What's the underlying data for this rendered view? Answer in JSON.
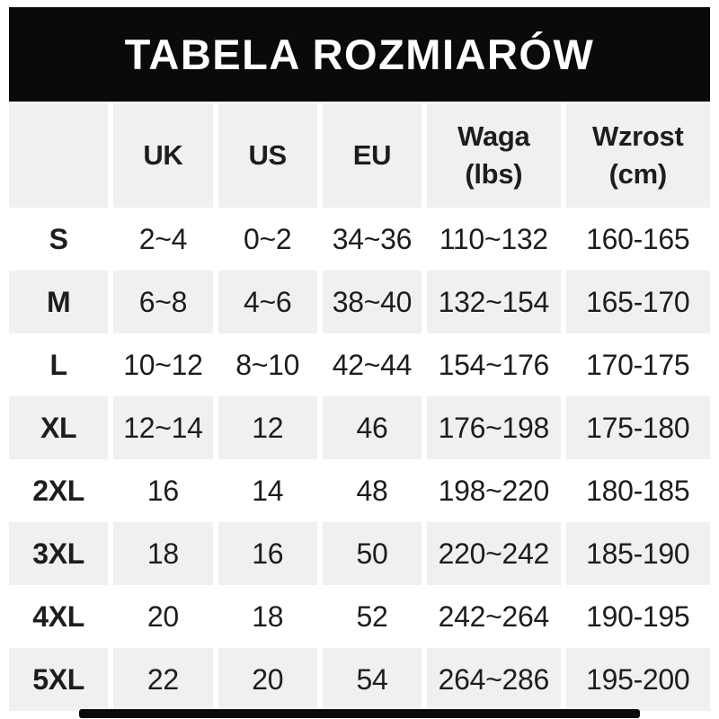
{
  "title": "TABELA ROZMIARÓW",
  "chart_data": {
    "type": "table",
    "title": "TABELA ROZMIARÓW",
    "columns": [
      "",
      "UK",
      "US",
      "EU",
      "Waga\n(lbs)",
      "Wzrost\n(cm)"
    ],
    "rows": [
      [
        "S",
        "2~4",
        "0~2",
        "34~36",
        "110~132",
        "160-165"
      ],
      [
        "M",
        "6~8",
        "4~6",
        "38~40",
        "132~154",
        "165-170"
      ],
      [
        "L",
        "10~12",
        "8~10",
        "42~44",
        "154~176",
        "170-175"
      ],
      [
        "XL",
        "12~14",
        "12",
        "46",
        "176~198",
        "175-180"
      ],
      [
        "2XL",
        "16",
        "14",
        "48",
        "198~220",
        "180-185"
      ],
      [
        "3XL",
        "18",
        "16",
        "50",
        "220~242",
        "185-190"
      ],
      [
        "4XL",
        "20",
        "18",
        "52",
        "242~264",
        "190-195"
      ],
      [
        "5XL",
        "22",
        "20",
        "54",
        "264~286",
        "195-200"
      ]
    ],
    "layout": {
      "alternating_row_color": "#f0f0f0",
      "header_bar_color": "#0a0a0a",
      "header_text_color": "#ffffff",
      "body_text_color": "#1d1d1d",
      "page_background": "#ffffff"
    }
  }
}
